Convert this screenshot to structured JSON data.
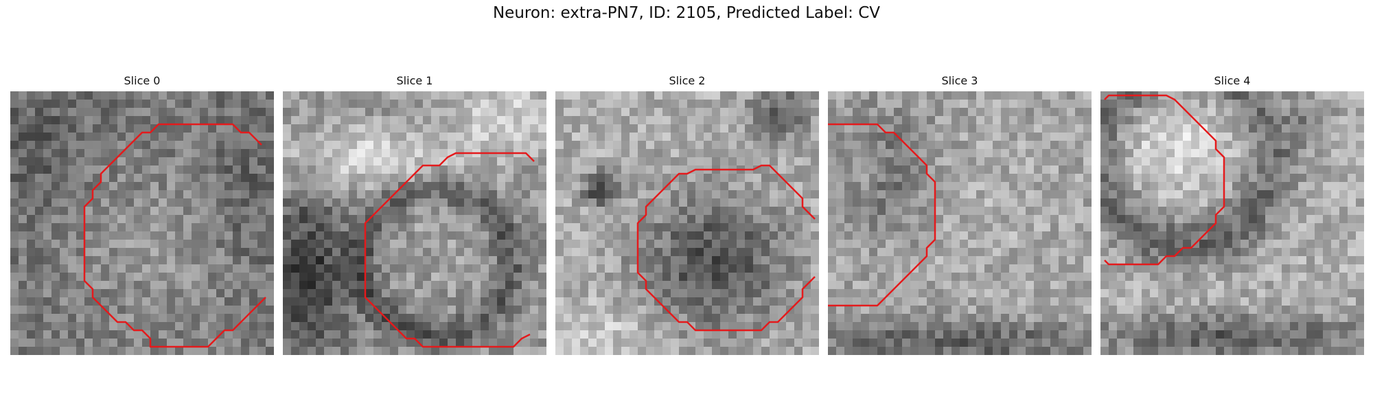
{
  "figure": {
    "title": "Neuron: extra-PN7, ID: 2105, Predicted Label: CV"
  },
  "contour_color": "#e41a1c",
  "slices": [
    {
      "label": "Slice 0"
    },
    {
      "label": "Slice 1"
    },
    {
      "label": "Slice 2"
    },
    {
      "label": "Slice 3"
    },
    {
      "label": "Slice 4"
    }
  ]
}
